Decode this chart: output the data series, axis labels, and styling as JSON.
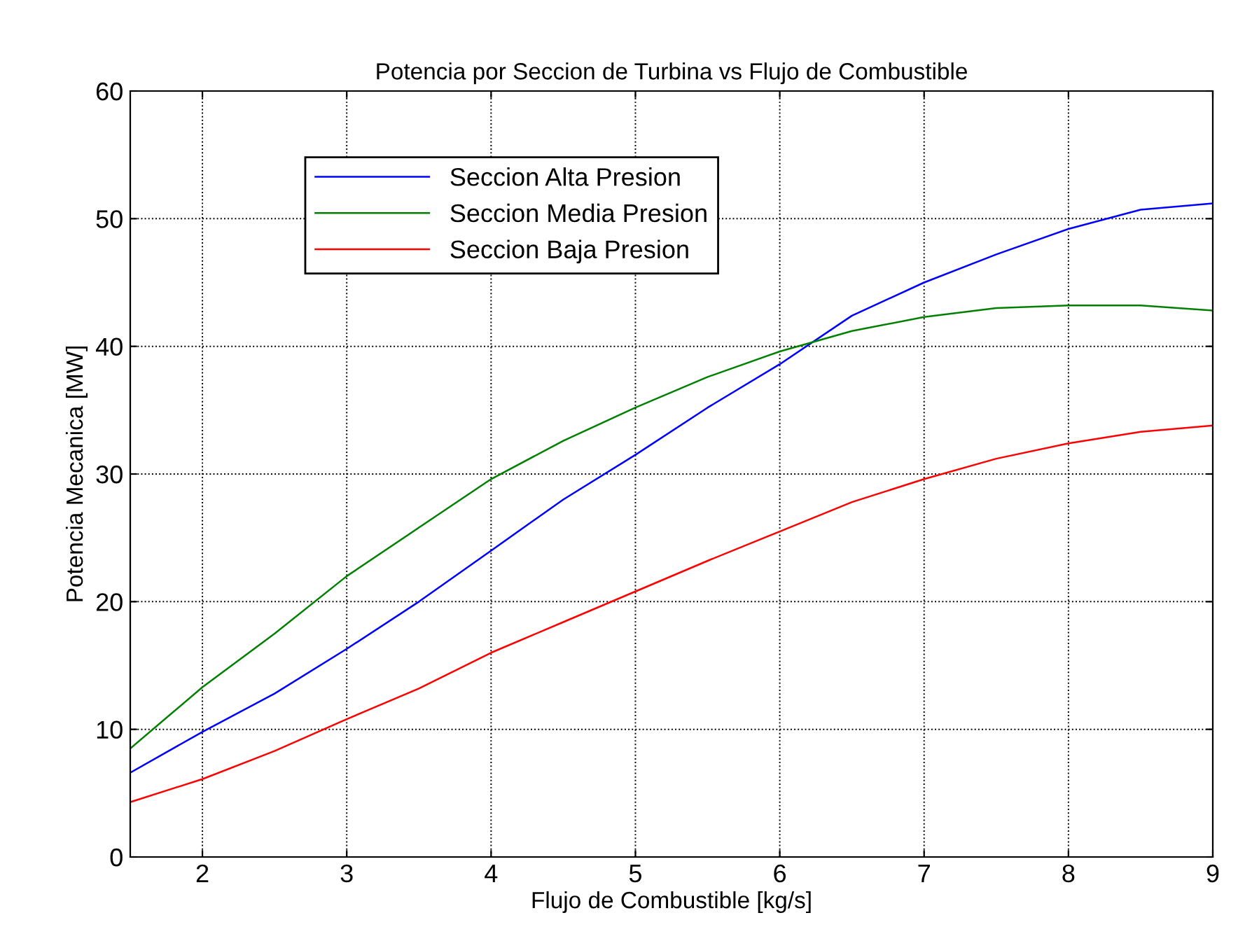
{
  "chart_data": {
    "type": "line",
    "title": "Potencia por Seccion de Turbina vs Flujo de Combustible",
    "xlabel": "Flujo de Combustible [kg/s]",
    "ylabel": "Potencia Mecanica [MW]",
    "x": [
      1.5,
      2,
      2.5,
      3,
      3.5,
      4,
      4.5,
      5,
      5.5,
      6,
      6.5,
      7,
      7.5,
      8,
      8.5,
      9
    ],
    "series": [
      {
        "name": "Seccion Alta Presion",
        "color": "#0000ff",
        "values": [
          6.6,
          9.8,
          12.8,
          16.3,
          20.0,
          24.0,
          28.0,
          31.5,
          35.2,
          38.6,
          42.4,
          45.0,
          47.2,
          49.2,
          50.7,
          51.2
        ]
      },
      {
        "name": "Seccion Media Presion",
        "color": "#008000",
        "values": [
          8.5,
          13.3,
          17.5,
          22.0,
          25.8,
          29.6,
          32.6,
          35.2,
          37.6,
          39.6,
          41.2,
          42.3,
          43.0,
          43.2,
          43.2,
          42.8
        ]
      },
      {
        "name": "Seccion Baja Presion",
        "color": "#ff0000",
        "values": [
          4.3,
          6.1,
          8.3,
          10.8,
          13.2,
          16.0,
          18.4,
          20.8,
          23.2,
          25.5,
          27.8,
          29.6,
          31.2,
          32.4,
          33.3,
          33.8
        ]
      }
    ],
    "xlim": [
      1.5,
      9
    ],
    "ylim": [
      0,
      60
    ],
    "xticks": [
      2,
      3,
      4,
      5,
      6,
      7,
      8,
      9
    ],
    "yticks": [
      0,
      10,
      20,
      30,
      40,
      50,
      60
    ],
    "grid": true,
    "legend": "top left",
    "line_style": "solid",
    "marker": "none"
  }
}
